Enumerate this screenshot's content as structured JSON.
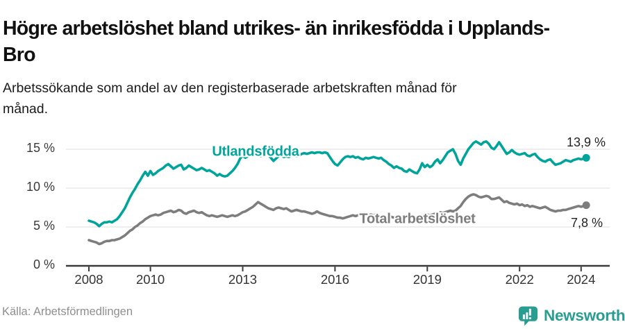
{
  "header": {
    "title": "Högre arbetslöshet bland utrikes- än inrikesfödda i Upplands-Bro",
    "subtitle": "Arbetssökande som andel av den registerbaserade arbetskraften månad för månad."
  },
  "footer": {
    "source": "Källa: Arbetsförmedlingen",
    "brand": "Newsworthy",
    "brand_color": "#2a9d92"
  },
  "chart_data": {
    "type": "line",
    "grid": "horizontal",
    "legend_position": "inline-labels",
    "axis_color": "#3a3a3a",
    "grid_color": "#dcdcdc",
    "x_axis": {
      "ticks": [
        2008,
        2010,
        2013,
        2016,
        2019,
        2022,
        2024
      ],
      "range": [
        2007.25,
        2025.0
      ]
    },
    "y_axis": {
      "ticks": [
        {
          "v": 0,
          "label": "0 %"
        },
        {
          "v": 5,
          "label": "5 %"
        },
        {
          "v": 10,
          "label": "10 %"
        },
        {
          "v": 15,
          "label": "15 %"
        }
      ],
      "range": [
        0,
        17.7
      ]
    },
    "series": [
      {
        "name": "Utlandsfödda",
        "color": "#00a49b",
        "end_label": "13,9 %",
        "start_year": 2008,
        "interval_months": 1,
        "values": [
          5.8,
          5.7,
          5.6,
          5.4,
          5.1,
          5.4,
          5.6,
          5.6,
          5.7,
          5.6,
          5.8,
          6.0,
          6.4,
          6.9,
          7.4,
          8.1,
          8.8,
          9.4,
          9.9,
          10.5,
          11.0,
          11.6,
          12.1,
          11.6,
          12.2,
          11.7,
          11.9,
          12.2,
          12.4,
          12.6,
          12.9,
          13.1,
          12.8,
          12.5,
          12.7,
          12.9,
          13.0,
          12.4,
          12.6,
          12.9,
          12.7,
          12.5,
          12.3,
          12.4,
          12.6,
          12.4,
          12.2,
          12.3,
          12.1,
          11.9,
          11.6,
          11.8,
          11.6,
          11.5,
          11.6,
          11.9,
          12.2,
          12.6,
          13.1,
          13.8,
          14.2,
          13.9,
          14.1,
          14.3,
          14.2,
          14.4,
          14.3,
          14.1,
          14.3,
          14.5,
          14.2,
          13.9,
          13.5,
          13.8,
          14.1,
          14.2,
          14.0,
          14.1,
          14.0,
          14.2,
          14.3,
          14.1,
          14.2,
          14.4,
          14.5,
          14.4,
          14.5,
          14.6,
          14.5,
          14.6,
          14.6,
          14.5,
          14.6,
          14.5,
          14.0,
          13.5,
          13.1,
          12.9,
          13.3,
          13.7,
          14.0,
          14.1,
          14.0,
          14.1,
          13.9,
          14.0,
          13.8,
          13.7,
          13.9,
          13.8,
          13.9,
          14.0,
          13.9,
          13.8,
          13.9,
          13.6,
          13.4,
          13.1,
          12.9,
          12.6,
          12.8,
          12.6,
          12.5,
          12.2,
          12.1,
          12.4,
          12.2,
          12.0,
          11.9,
          12.4,
          13.2,
          12.7,
          13.0,
          12.7,
          12.9,
          13.4,
          13.7,
          13.2,
          13.6,
          14.1,
          14.6,
          14.8,
          15.0,
          14.4,
          13.5,
          13.0,
          13.8,
          14.4,
          15.0,
          15.4,
          15.8,
          16.0,
          15.8,
          15.6,
          15.9,
          16.0,
          15.7,
          15.2,
          15.0,
          15.4,
          15.9,
          15.4,
          14.9,
          14.4,
          14.6,
          14.9,
          14.6,
          14.4,
          14.3,
          14.4,
          14.5,
          14.2,
          14.1,
          14.3,
          14.4,
          14.0,
          13.7,
          13.5,
          13.4,
          13.6,
          13.7,
          13.3,
          13.0,
          13.1,
          13.2,
          13.4,
          13.6,
          13.5,
          13.4,
          13.6,
          13.7,
          13.8,
          13.7,
          13.8,
          13.9
        ]
      },
      {
        "name": "Total arbetslöshet",
        "color": "#7d7d7d",
        "end_label": "7,8 %",
        "start_year": 2008,
        "interval_months": 1,
        "values": [
          3.3,
          3.2,
          3.1,
          3.0,
          2.8,
          2.9,
          3.1,
          3.2,
          3.2,
          3.3,
          3.3,
          3.4,
          3.5,
          3.7,
          3.9,
          4.2,
          4.5,
          4.7,
          5.0,
          5.2,
          5.5,
          5.7,
          6.0,
          6.2,
          6.4,
          6.5,
          6.6,
          6.5,
          6.6,
          6.8,
          6.9,
          7.0,
          7.1,
          6.9,
          7.0,
          7.2,
          7.1,
          6.8,
          6.7,
          6.9,
          7.0,
          7.1,
          6.9,
          6.8,
          6.9,
          6.7,
          6.5,
          6.4,
          6.5,
          6.4,
          6.3,
          6.4,
          6.5,
          6.4,
          6.3,
          6.4,
          6.5,
          6.4,
          6.5,
          6.7,
          6.9,
          7.0,
          7.2,
          7.4,
          7.6,
          7.9,
          8.2,
          8.0,
          7.8,
          7.6,
          7.4,
          7.3,
          7.2,
          7.4,
          7.5,
          7.4,
          7.3,
          7.4,
          7.2,
          7.0,
          7.1,
          7.2,
          7.1,
          7.0,
          7.0,
          6.9,
          6.8,
          6.7,
          6.8,
          7.0,
          6.8,
          6.7,
          6.6,
          6.5,
          6.4,
          6.4,
          6.3,
          6.2,
          6.2,
          6.1,
          6.2,
          6.3,
          6.4,
          6.5,
          6.4,
          6.5,
          6.6,
          6.5,
          6.4,
          6.5,
          6.6,
          6.5,
          6.6,
          6.5,
          6.4,
          6.4,
          6.3,
          6.4,
          6.3,
          6.2,
          6.3,
          6.2,
          6.3,
          6.2,
          6.3,
          6.4,
          6.3,
          6.2,
          6.3,
          6.4,
          6.5,
          6.5,
          6.6,
          6.5,
          6.6,
          6.7,
          6.8,
          6.9,
          6.8,
          6.9,
          7.0,
          7.1,
          7.0,
          7.1,
          7.4,
          7.7,
          8.2,
          8.6,
          8.9,
          9.1,
          9.2,
          9.1,
          8.9,
          8.8,
          8.9,
          9.0,
          8.9,
          8.6,
          8.6,
          8.7,
          8.8,
          8.5,
          8.2,
          8.3,
          8.1,
          8.0,
          7.9,
          8.0,
          7.8,
          7.9,
          7.7,
          7.8,
          7.6,
          7.7,
          7.6,
          7.5,
          7.4,
          7.5,
          7.6,
          7.4,
          7.2,
          7.1,
          7.0,
          7.1,
          7.1,
          7.2,
          7.2,
          7.3,
          7.4,
          7.5,
          7.6,
          7.7,
          7.6,
          7.7,
          7.8
        ]
      }
    ]
  }
}
